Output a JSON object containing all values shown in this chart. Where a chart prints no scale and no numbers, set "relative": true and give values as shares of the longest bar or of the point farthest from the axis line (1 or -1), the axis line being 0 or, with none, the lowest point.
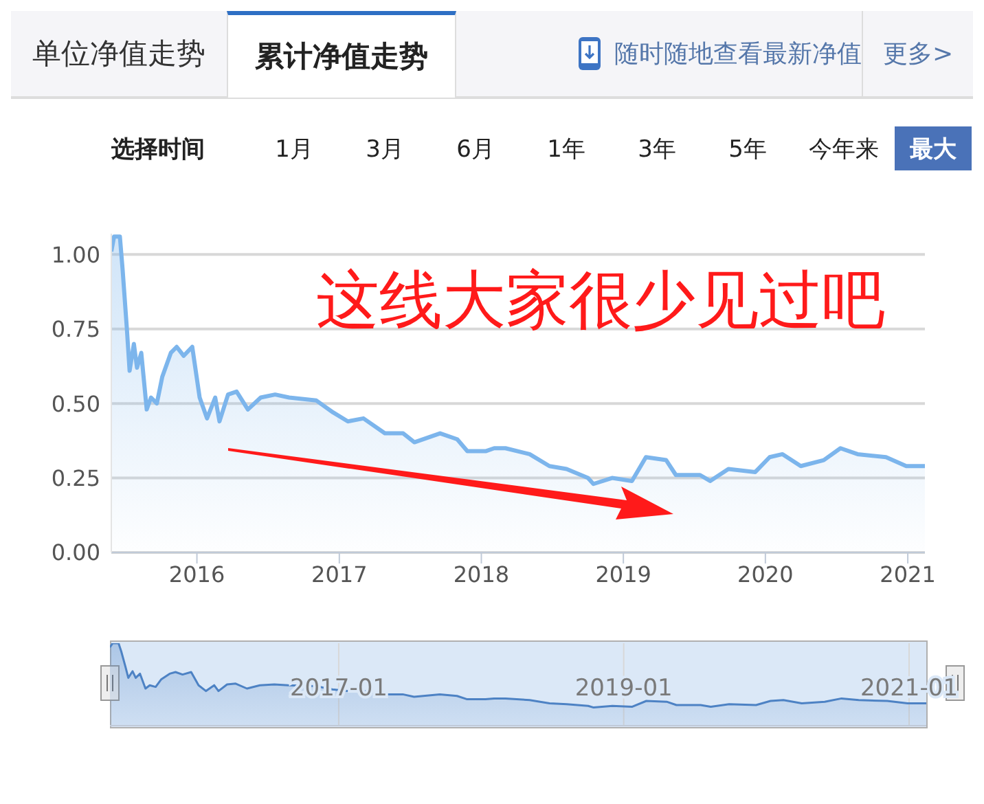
{
  "chart_data": [
    {
      "type": "area",
      "title": "累计净值走势",
      "annotations": [
        "单位净值走势",
        "随时随地查看最新净值",
        "更多>",
        "选择时间",
        "1月",
        "3月",
        "6月",
        "1年",
        "3年",
        "5年",
        "今年来",
        "最大",
        "这线大家很少见过吧"
      ],
      "x": [
        "2015-05-26",
        "2015-06-02",
        "2015-06-17",
        "2015-06-24",
        "2015-07-05",
        "2015-07-12",
        "2015-07-23",
        "2015-07-31",
        "2015-08-11",
        "2015-08-25",
        "2015-09-05",
        "2015-09-20",
        "2015-10-04",
        "2015-10-26",
        "2015-11-10",
        "2015-11-28",
        "2015-12-20",
        "2016-01-08",
        "2016-01-27",
        "2016-02-17",
        "2016-02-28",
        "2016-03-21",
        "2016-04-12",
        "2016-05-11",
        "2016-06-13",
        "2016-07-20",
        "2016-08-25",
        "2016-11-03",
        "2016-12-16",
        "2017-01-23",
        "2017-03-04",
        "2017-04-28",
        "2017-06-14",
        "2017-07-13",
        "2017-09-17",
        "2017-10-31",
        "2017-11-26",
        "2018-01-12",
        "2018-02-03",
        "2018-03-04",
        "2018-05-05",
        "2018-06-25",
        "2018-08-08",
        "2018-10-02",
        "2018-10-16",
        "2018-12-03",
        "2019-01-23",
        "2019-02-28",
        "2019-04-21",
        "2019-05-16",
        "2019-07-17",
        "2019-08-12",
        "2019-09-28",
        "2019-12-06",
        "2020-01-12",
        "2020-02-14",
        "2020-04-01",
        "2020-05-30",
        "2020-07-12",
        "2020-08-25",
        "2020-11-06",
        "2020-12-28",
        "2021-02-14"
      ],
      "series": [
        {
          "color": "#7cb5ec",
          "values": [
            1.01,
            1.06,
            1.06,
            0.95,
            0.75,
            0.61,
            0.7,
            0.62,
            0.67,
            0.48,
            0.52,
            0.5,
            0.59,
            0.67,
            0.69,
            0.66,
            0.69,
            0.52,
            0.45,
            0.52,
            0.44,
            0.53,
            0.54,
            0.48,
            0.52,
            0.53,
            0.52,
            0.51,
            0.47,
            0.44,
            0.45,
            0.4,
            0.4,
            0.37,
            0.4,
            0.38,
            0.34,
            0.34,
            0.35,
            0.35,
            0.33,
            0.29,
            0.28,
            0.25,
            0.23,
            0.25,
            0.24,
            0.32,
            0.31,
            0.26,
            0.26,
            0.24,
            0.28,
            0.27,
            0.32,
            0.33,
            0.29,
            0.31,
            0.35,
            0.33,
            0.32,
            0.29,
            0.29
          ]
        }
      ],
      "xlim": [
        "2015-05-26",
        "2021-02-14"
      ],
      "xticks": [
        "2016",
        "2017",
        "2018",
        "2019",
        "2020",
        "2021"
      ],
      "ylim": [
        0,
        1.07
      ],
      "yticks": [
        {
          "value": 0,
          "label": "0.00"
        },
        {
          "value": 0.25,
          "label": "0.25"
        },
        {
          "value": 0.5,
          "label": "0.50"
        },
        {
          "value": 0.75,
          "label": "0.75"
        },
        {
          "value": 1,
          "label": "1.00"
        }
      ],
      "grid": "y"
    },
    {
      "type": "area",
      "relative": true,
      "x": [
        "2015-05-26",
        "2015-06-02",
        "2015-06-17",
        "2015-06-24",
        "2015-07-05",
        "2015-07-12",
        "2015-07-23",
        "2015-07-31",
        "2015-08-11",
        "2015-08-25",
        "2015-09-05",
        "2015-09-20",
        "2015-10-04",
        "2015-10-26",
        "2015-11-10",
        "2015-11-28",
        "2015-12-20",
        "2016-01-08",
        "2016-01-27",
        "2016-02-17",
        "2016-02-28",
        "2016-03-21",
        "2016-04-12",
        "2016-05-11",
        "2016-06-13",
        "2016-07-20",
        "2016-08-25",
        "2016-11-03",
        "2016-12-16",
        "2017-01-23",
        "2017-03-04",
        "2017-04-28",
        "2017-06-14",
        "2017-07-13",
        "2017-09-17",
        "2017-10-31",
        "2017-11-26",
        "2018-01-12",
        "2018-02-03",
        "2018-03-04",
        "2018-05-05",
        "2018-06-25",
        "2018-08-08",
        "2018-10-02",
        "2018-10-16",
        "2018-12-03",
        "2019-01-23",
        "2019-02-28",
        "2019-04-21",
        "2019-05-16",
        "2019-07-17",
        "2019-08-12",
        "2019-09-28",
        "2019-12-06",
        "2020-01-12",
        "2020-02-14",
        "2020-04-01",
        "2020-05-30",
        "2020-07-12",
        "2020-08-25",
        "2020-11-06",
        "2020-12-28",
        "2021-02-14"
      ],
      "series": [
        {
          "color": "#4d82c4",
          "values": [
            0.95,
            1,
            1,
            0.9,
            0.71,
            0.58,
            0.66,
            0.58,
            0.63,
            0.45,
            0.49,
            0.47,
            0.56,
            0.63,
            0.65,
            0.62,
            0.65,
            0.49,
            0.42,
            0.49,
            0.42,
            0.5,
            0.51,
            0.45,
            0.49,
            0.5,
            0.49,
            0.48,
            0.44,
            0.42,
            0.42,
            0.38,
            0.38,
            0.35,
            0.38,
            0.36,
            0.32,
            0.32,
            0.33,
            0.33,
            0.31,
            0.27,
            0.26,
            0.24,
            0.22,
            0.24,
            0.23,
            0.3,
            0.29,
            0.25,
            0.25,
            0.23,
            0.26,
            0.25,
            0.3,
            0.31,
            0.27,
            0.29,
            0.33,
            0.31,
            0.3,
            0.27,
            0.27
          ]
        }
      ],
      "xlim": [
        "2015-05-26",
        "2021-02-14"
      ],
      "xticks": [
        "2017-01",
        "2019-01",
        "2021-01"
      ],
      "tick_labels": "x",
      "grid": "x"
    }
  ]
}
